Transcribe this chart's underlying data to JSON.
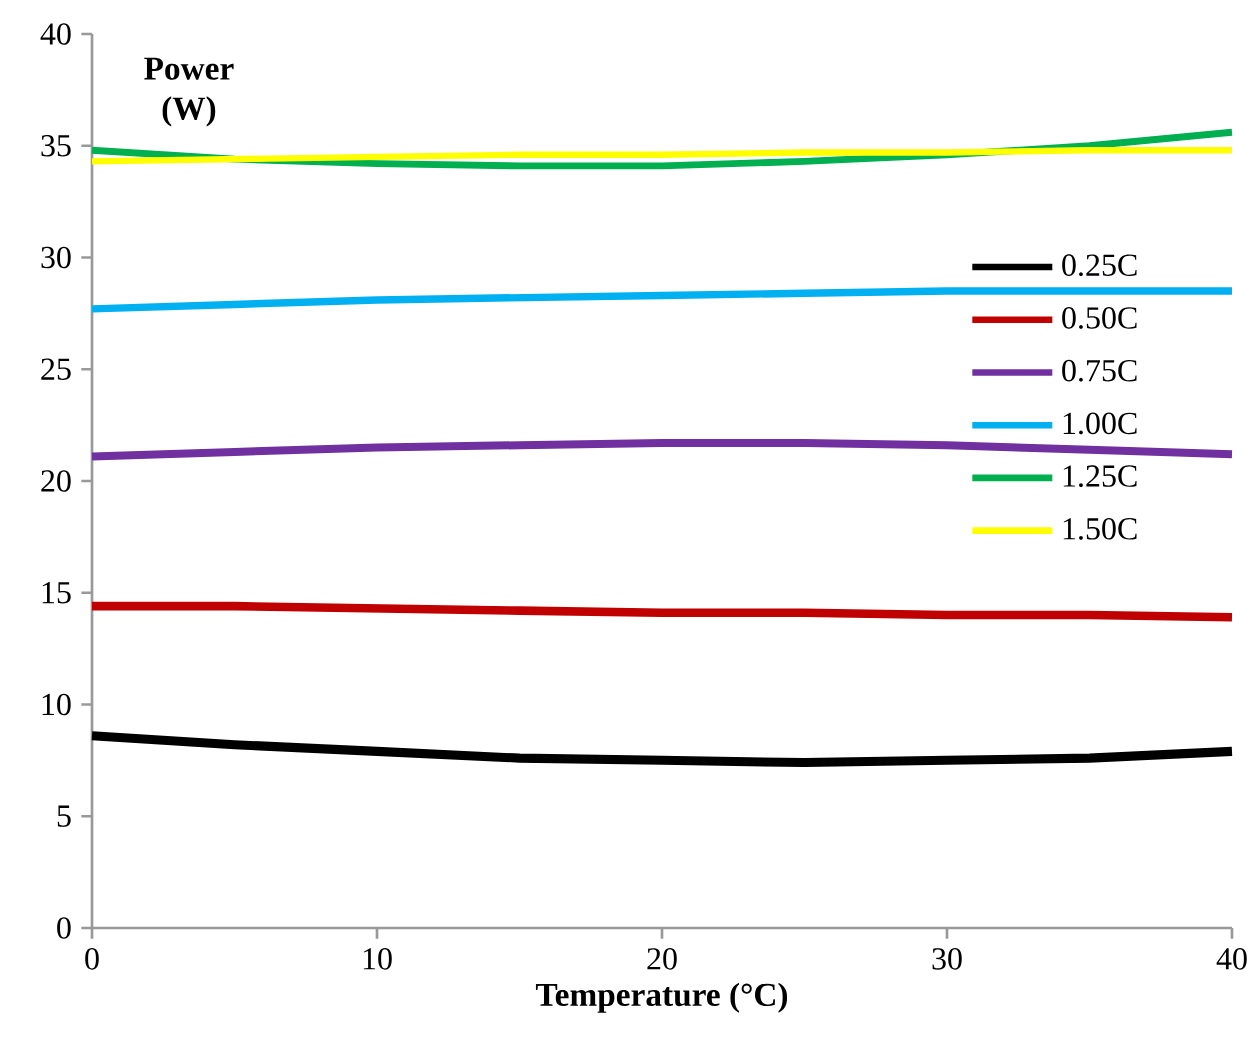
{
  "chart_data": {
    "type": "line",
    "xlabel": "Temperature (°C)",
    "ylabel": "Power (W)",
    "x": [
      0,
      5,
      10,
      15,
      20,
      25,
      30,
      35,
      40
    ],
    "xlim": [
      0,
      40
    ],
    "xticks": [
      0,
      10,
      20,
      30,
      40
    ],
    "ylim": [
      0,
      40
    ],
    "yticks": [
      0,
      5,
      10,
      15,
      20,
      25,
      30,
      35,
      40
    ],
    "grid": false,
    "legend": "right",
    "marker": "none",
    "line_style": "solid",
    "series": [
      {
        "name": "0.25C",
        "color": "#000000",
        "values": [
          8.6,
          8.2,
          7.9,
          7.6,
          7.5,
          7.4,
          7.5,
          7.6,
          7.9
        ]
      },
      {
        "name": "0.50C",
        "color": "#c00000",
        "values": [
          14.4,
          14.4,
          14.3,
          14.2,
          14.1,
          14.1,
          14.0,
          14.0,
          13.9
        ]
      },
      {
        "name": "0.75C",
        "color": "#7030a0",
        "values": [
          21.1,
          21.3,
          21.5,
          21.6,
          21.7,
          21.7,
          21.6,
          21.4,
          21.2
        ]
      },
      {
        "name": "1.00C",
        "color": "#00b0f0",
        "values": [
          27.7,
          27.9,
          28.1,
          28.2,
          28.3,
          28.4,
          28.5,
          28.5,
          28.5
        ]
      },
      {
        "name": "1.25C",
        "color": "#00b050",
        "values": [
          34.8,
          34.4,
          34.2,
          34.1,
          34.1,
          34.3,
          34.6,
          35.0,
          35.6
        ]
      },
      {
        "name": "1.50C",
        "color": "#ffff00",
        "values": [
          34.3,
          34.4,
          34.5,
          34.6,
          34.6,
          34.7,
          34.7,
          34.8,
          34.8
        ]
      }
    ]
  }
}
